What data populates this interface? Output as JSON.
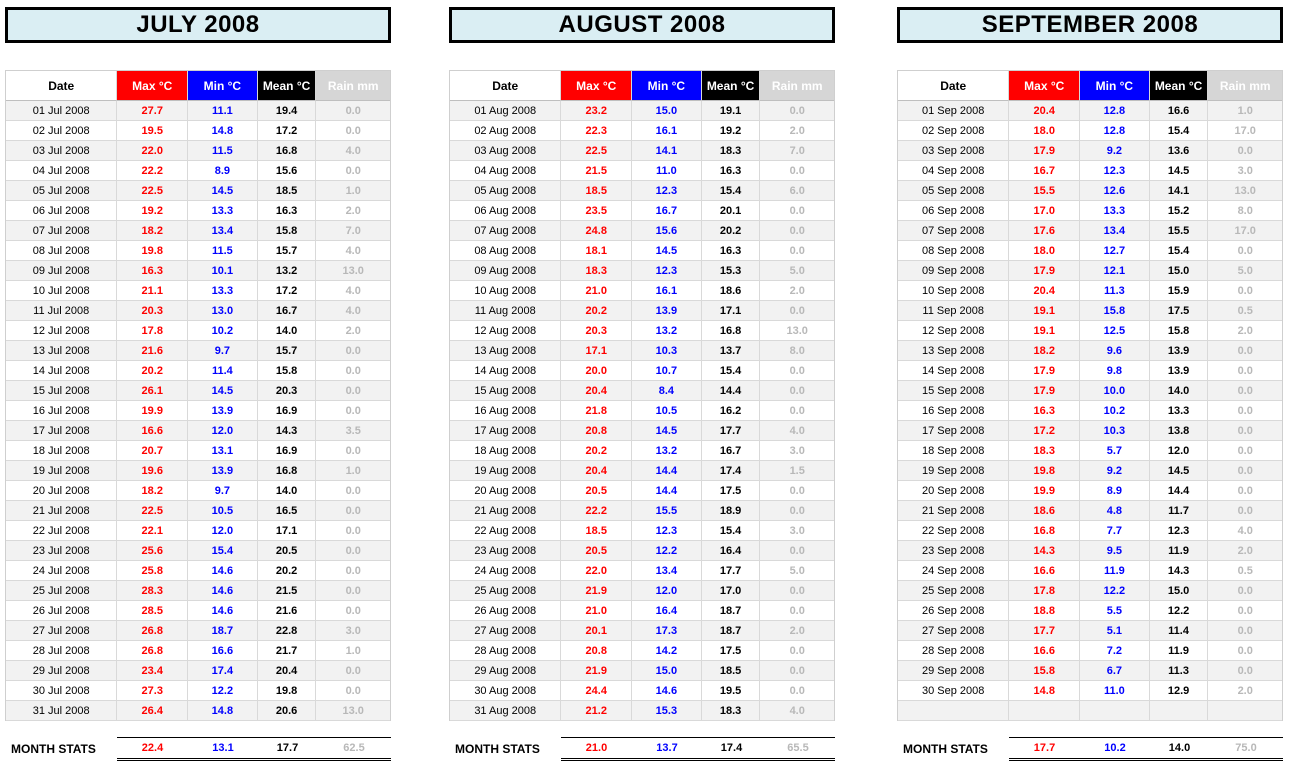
{
  "columns": [
    {
      "key": "date",
      "label": "Date"
    },
    {
      "key": "max",
      "label": "Max °C"
    },
    {
      "key": "min",
      "label": "Min °C"
    },
    {
      "key": "mean",
      "label": "Mean °C"
    },
    {
      "key": "rain",
      "label": "Rain mm"
    }
  ],
  "stats_label": "MONTH STATS",
  "colors": {
    "max": "#ff0000",
    "min": "#0000ff",
    "mean": "#000000",
    "rain_text": "#b8b8b8",
    "rain_header_bg": "#d6d6d6",
    "title_bg": "#daeef3",
    "row_stripe": "#f2f2f2",
    "grid": "#d9d9d9"
  },
  "months": [
    {
      "title": "JULY 2008",
      "rows": [
        [
          "01 Jul 2008",
          "27.7",
          "11.1",
          "19.4",
          "0.0"
        ],
        [
          "02 Jul 2008",
          "19.5",
          "14.8",
          "17.2",
          "0.0"
        ],
        [
          "03 Jul 2008",
          "22.0",
          "11.5",
          "16.8",
          "4.0"
        ],
        [
          "04 Jul 2008",
          "22.2",
          "8.9",
          "15.6",
          "0.0"
        ],
        [
          "05 Jul 2008",
          "22.5",
          "14.5",
          "18.5",
          "1.0"
        ],
        [
          "06 Jul 2008",
          "19.2",
          "13.3",
          "16.3",
          "2.0"
        ],
        [
          "07 Jul 2008",
          "18.2",
          "13.4",
          "15.8",
          "7.0"
        ],
        [
          "08 Jul 2008",
          "19.8",
          "11.5",
          "15.7",
          "4.0"
        ],
        [
          "09 Jul 2008",
          "16.3",
          "10.1",
          "13.2",
          "13.0"
        ],
        [
          "10 Jul 2008",
          "21.1",
          "13.3",
          "17.2",
          "4.0"
        ],
        [
          "11 Jul 2008",
          "20.3",
          "13.0",
          "16.7",
          "4.0"
        ],
        [
          "12 Jul 2008",
          "17.8",
          "10.2",
          "14.0",
          "2.0"
        ],
        [
          "13 Jul 2008",
          "21.6",
          "9.7",
          "15.7",
          "0.0"
        ],
        [
          "14 Jul 2008",
          "20.2",
          "11.4",
          "15.8",
          "0.0"
        ],
        [
          "15 Jul 2008",
          "26.1",
          "14.5",
          "20.3",
          "0.0"
        ],
        [
          "16 Jul 2008",
          "19.9",
          "13.9",
          "16.9",
          "0.0"
        ],
        [
          "17 Jul 2008",
          "16.6",
          "12.0",
          "14.3",
          "3.5"
        ],
        [
          "18 Jul 2008",
          "20.7",
          "13.1",
          "16.9",
          "0.0"
        ],
        [
          "19 Jul 2008",
          "19.6",
          "13.9",
          "16.8",
          "1.0"
        ],
        [
          "20 Jul 2008",
          "18.2",
          "9.7",
          "14.0",
          "0.0"
        ],
        [
          "21 Jul 2008",
          "22.5",
          "10.5",
          "16.5",
          "0.0"
        ],
        [
          "22 Jul 2008",
          "22.1",
          "12.0",
          "17.1",
          "0.0"
        ],
        [
          "23 Jul 2008",
          "25.6",
          "15.4",
          "20.5",
          "0.0"
        ],
        [
          "24 Jul 2008",
          "25.8",
          "14.6",
          "20.2",
          "0.0"
        ],
        [
          "25 Jul 2008",
          "28.3",
          "14.6",
          "21.5",
          "0.0"
        ],
        [
          "26 Jul 2008",
          "28.5",
          "14.6",
          "21.6",
          "0.0"
        ],
        [
          "27 Jul 2008",
          "26.8",
          "18.7",
          "22.8",
          "3.0"
        ],
        [
          "28 Jul 2008",
          "26.8",
          "16.6",
          "21.7",
          "1.0"
        ],
        [
          "29 Jul 2008",
          "23.4",
          "17.4",
          "20.4",
          "0.0"
        ],
        [
          "30 Jul 2008",
          "27.3",
          "12.2",
          "19.8",
          "0.0"
        ],
        [
          "31 Jul 2008",
          "26.4",
          "14.8",
          "20.6",
          "13.0"
        ]
      ],
      "stats": [
        "22.4",
        "13.1",
        "17.7",
        "62.5"
      ]
    },
    {
      "title": "AUGUST 2008",
      "rows": [
        [
          "01 Aug 2008",
          "23.2",
          "15.0",
          "19.1",
          "0.0"
        ],
        [
          "02 Aug 2008",
          "22.3",
          "16.1",
          "19.2",
          "2.0"
        ],
        [
          "03 Aug 2008",
          "22.5",
          "14.1",
          "18.3",
          "7.0"
        ],
        [
          "04 Aug 2008",
          "21.5",
          "11.0",
          "16.3",
          "0.0"
        ],
        [
          "05 Aug 2008",
          "18.5",
          "12.3",
          "15.4",
          "6.0"
        ],
        [
          "06 Aug 2008",
          "23.5",
          "16.7",
          "20.1",
          "0.0"
        ],
        [
          "07 Aug 2008",
          "24.8",
          "15.6",
          "20.2",
          "0.0"
        ],
        [
          "08 Aug 2008",
          "18.1",
          "14.5",
          "16.3",
          "0.0"
        ],
        [
          "09 Aug 2008",
          "18.3",
          "12.3",
          "15.3",
          "5.0"
        ],
        [
          "10 Aug 2008",
          "21.0",
          "16.1",
          "18.6",
          "2.0"
        ],
        [
          "11 Aug 2008",
          "20.2",
          "13.9",
          "17.1",
          "0.0"
        ],
        [
          "12 Aug 2008",
          "20.3",
          "13.2",
          "16.8",
          "13.0"
        ],
        [
          "13 Aug 2008",
          "17.1",
          "10.3",
          "13.7",
          "8.0"
        ],
        [
          "14 Aug 2008",
          "20.0",
          "10.7",
          "15.4",
          "0.0"
        ],
        [
          "15 Aug 2008",
          "20.4",
          "8.4",
          "14.4",
          "0.0"
        ],
        [
          "16 Aug 2008",
          "21.8",
          "10.5",
          "16.2",
          "0.0"
        ],
        [
          "17 Aug 2008",
          "20.8",
          "14.5",
          "17.7",
          "4.0"
        ],
        [
          "18 Aug 2008",
          "20.2",
          "13.2",
          "16.7",
          "3.0"
        ],
        [
          "19 Aug 2008",
          "20.4",
          "14.4",
          "17.4",
          "1.5"
        ],
        [
          "20 Aug 2008",
          "20.5",
          "14.4",
          "17.5",
          "0.0"
        ],
        [
          "21 Aug 2008",
          "22.2",
          "15.5",
          "18.9",
          "0.0"
        ],
        [
          "22 Aug 2008",
          "18.5",
          "12.3",
          "15.4",
          "3.0"
        ],
        [
          "23 Aug 2008",
          "20.5",
          "12.2",
          "16.4",
          "0.0"
        ],
        [
          "24 Aug 2008",
          "22.0",
          "13.4",
          "17.7",
          "5.0"
        ],
        [
          "25 Aug 2008",
          "21.9",
          "12.0",
          "17.0",
          "0.0"
        ],
        [
          "26 Aug 2008",
          "21.0",
          "16.4",
          "18.7",
          "0.0"
        ],
        [
          "27 Aug 2008",
          "20.1",
          "17.3",
          "18.7",
          "2.0"
        ],
        [
          "28 Aug 2008",
          "20.8",
          "14.2",
          "17.5",
          "0.0"
        ],
        [
          "29 Aug 2008",
          "21.9",
          "15.0",
          "18.5",
          "0.0"
        ],
        [
          "30 Aug 2008",
          "24.4",
          "14.6",
          "19.5",
          "0.0"
        ],
        [
          "31 Aug 2008",
          "21.2",
          "15.3",
          "18.3",
          "4.0"
        ]
      ],
      "stats": [
        "21.0",
        "13.7",
        "17.4",
        "65.5"
      ]
    },
    {
      "title": "SEPTEMBER 2008",
      "rows": [
        [
          "01 Sep 2008",
          "20.4",
          "12.8",
          "16.6",
          "1.0"
        ],
        [
          "02 Sep 2008",
          "18.0",
          "12.8",
          "15.4",
          "17.0"
        ],
        [
          "03 Sep 2008",
          "17.9",
          "9.2",
          "13.6",
          "0.0"
        ],
        [
          "04 Sep 2008",
          "16.7",
          "12.3",
          "14.5",
          "3.0"
        ],
        [
          "05 Sep 2008",
          "15.5",
          "12.6",
          "14.1",
          "13.0"
        ],
        [
          "06 Sep 2008",
          "17.0",
          "13.3",
          "15.2",
          "8.0"
        ],
        [
          "07 Sep 2008",
          "17.6",
          "13.4",
          "15.5",
          "17.0"
        ],
        [
          "08 Sep 2008",
          "18.0",
          "12.7",
          "15.4",
          "0.0"
        ],
        [
          "09 Sep 2008",
          "17.9",
          "12.1",
          "15.0",
          "5.0"
        ],
        [
          "10 Sep 2008",
          "20.4",
          "11.3",
          "15.9",
          "0.0"
        ],
        [
          "11 Sep 2008",
          "19.1",
          "15.8",
          "17.5",
          "0.5"
        ],
        [
          "12 Sep 2008",
          "19.1",
          "12.5",
          "15.8",
          "2.0"
        ],
        [
          "13 Sep 2008",
          "18.2",
          "9.6",
          "13.9",
          "0.0"
        ],
        [
          "14 Sep 2008",
          "17.9",
          "9.8",
          "13.9",
          "0.0"
        ],
        [
          "15 Sep 2008",
          "17.9",
          "10.0",
          "14.0",
          "0.0"
        ],
        [
          "16 Sep 2008",
          "16.3",
          "10.2",
          "13.3",
          "0.0"
        ],
        [
          "17 Sep 2008",
          "17.2",
          "10.3",
          "13.8",
          "0.0"
        ],
        [
          "18 Sep 2008",
          "18.3",
          "5.7",
          "12.0",
          "0.0"
        ],
        [
          "19 Sep 2008",
          "19.8",
          "9.2",
          "14.5",
          "0.0"
        ],
        [
          "20 Sep 2008",
          "19.9",
          "8.9",
          "14.4",
          "0.0"
        ],
        [
          "21 Sep 2008",
          "18.6",
          "4.8",
          "11.7",
          "0.0"
        ],
        [
          "22 Sep 2008",
          "16.8",
          "7.7",
          "12.3",
          "4.0"
        ],
        [
          "23 Sep 2008",
          "14.3",
          "9.5",
          "11.9",
          "2.0"
        ],
        [
          "24 Sep 2008",
          "16.6",
          "11.9",
          "14.3",
          "0.5"
        ],
        [
          "25 Sep 2008",
          "17.8",
          "12.2",
          "15.0",
          "0.0"
        ],
        [
          "26 Sep 2008",
          "18.8",
          "5.5",
          "12.2",
          "0.0"
        ],
        [
          "27 Sep 2008",
          "17.7",
          "5.1",
          "11.4",
          "0.0"
        ],
        [
          "28 Sep 2008",
          "16.6",
          "7.2",
          "11.9",
          "0.0"
        ],
        [
          "29 Sep 2008",
          "15.8",
          "6.7",
          "11.3",
          "0.0"
        ],
        [
          "30 Sep 2008",
          "14.8",
          "11.0",
          "12.9",
          "2.0"
        ],
        [
          "",
          "",
          "",
          "",
          ""
        ]
      ],
      "stats": [
        "17.7",
        "10.2",
        "14.0",
        "75.0"
      ]
    }
  ]
}
